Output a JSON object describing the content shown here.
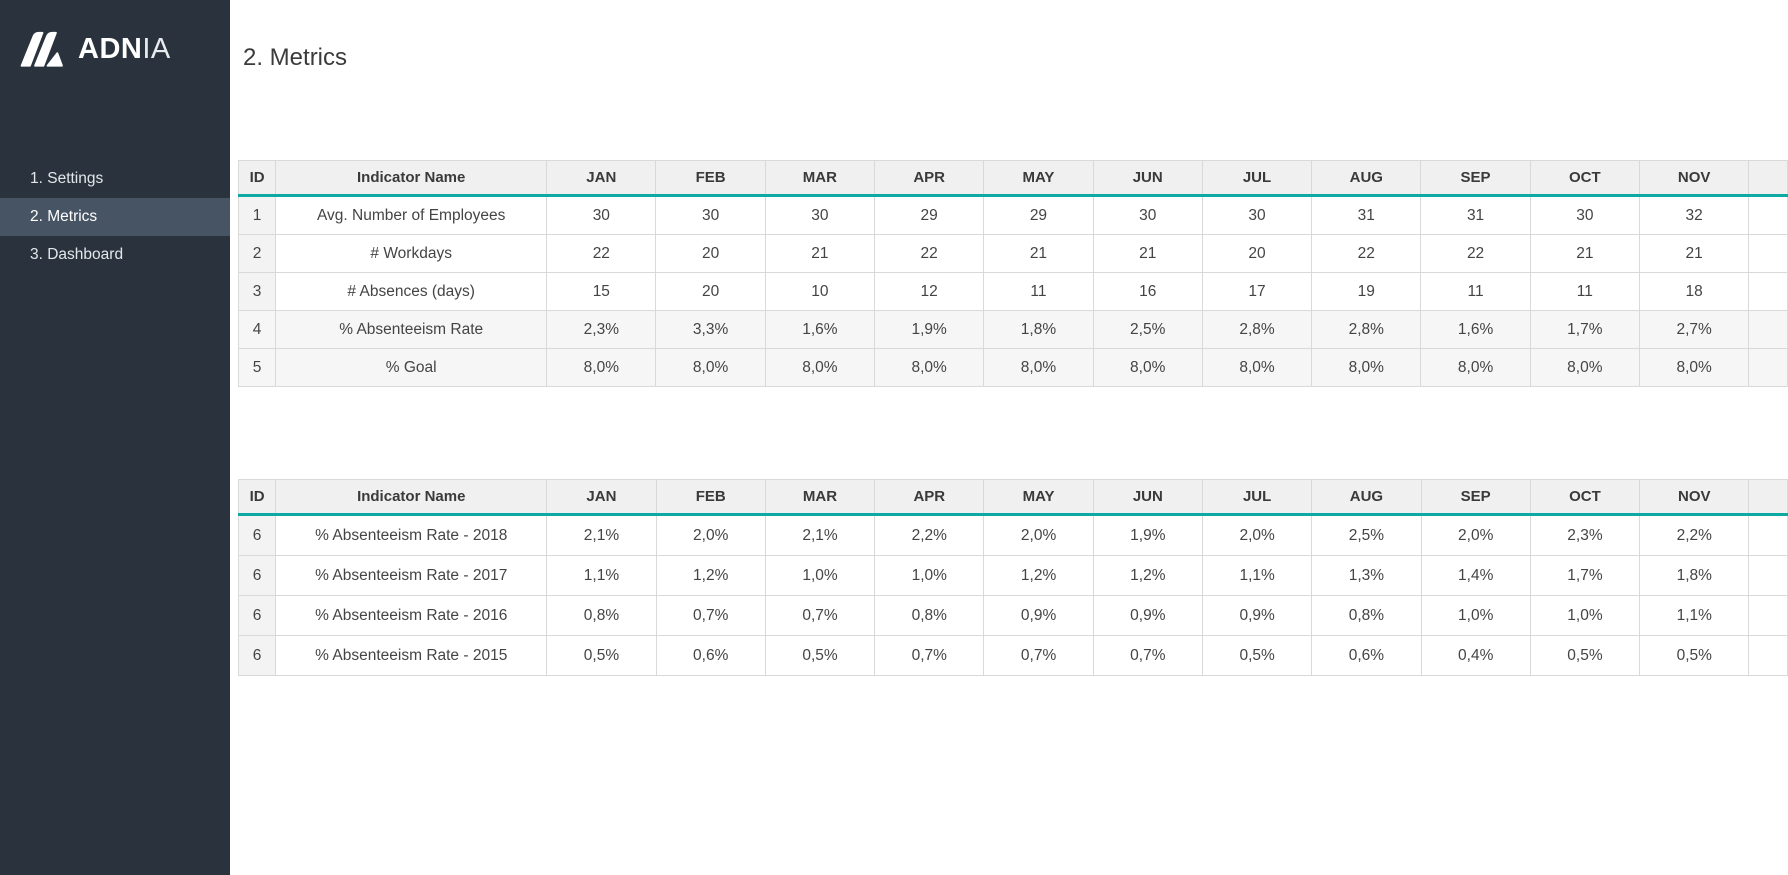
{
  "sidebar": {
    "logo": {
      "brand_bold": "ADN",
      "brand_light": "IA",
      "icon": "adnia-logo-icon"
    },
    "items": [
      {
        "label": "1. Settings",
        "active": false
      },
      {
        "label": "2. Metrics",
        "active": true
      },
      {
        "label": "3. Dashboard",
        "active": false
      }
    ]
  },
  "page": {
    "title": "2. Metrics"
  },
  "colors": {
    "sidebar_bg": "#2A333D",
    "sidebar_active_bg": "#475463",
    "accent_teal": "#0FA9A4",
    "table_header_bg": "#F0F0F0",
    "table_border": "#D9D9D9",
    "shaded_row_bg": "#F6F6F6",
    "id_column_bg": "#F3F3F3",
    "text_dark": "#3B3B3B"
  },
  "tables": [
    {
      "columns": [
        "ID",
        "Indicator Name",
        "JAN",
        "FEB",
        "MAR",
        "APR",
        "MAY",
        "JUN",
        "JUL",
        "AUG",
        "SEP",
        "OCT",
        "NOV"
      ],
      "rows": [
        {
          "id": "1",
          "name": "Avg. Number of Employees",
          "shaded": false,
          "values": [
            "30",
            "30",
            "30",
            "29",
            "29",
            "30",
            "30",
            "31",
            "31",
            "30",
            "32"
          ]
        },
        {
          "id": "2",
          "name": "# Workdays",
          "shaded": false,
          "values": [
            "22",
            "20",
            "21",
            "22",
            "21",
            "21",
            "20",
            "22",
            "22",
            "21",
            "21"
          ]
        },
        {
          "id": "3",
          "name": "# Absences (days)",
          "shaded": false,
          "values": [
            "15",
            "20",
            "10",
            "12",
            "11",
            "16",
            "17",
            "19",
            "11",
            "11",
            "18"
          ]
        },
        {
          "id": "4",
          "name": "% Absenteeism Rate",
          "shaded": true,
          "values": [
            "2,3%",
            "3,3%",
            "1,6%",
            "1,9%",
            "1,8%",
            "2,5%",
            "2,8%",
            "2,8%",
            "1,6%",
            "1,7%",
            "2,7%"
          ]
        },
        {
          "id": "5",
          "name": "% Goal",
          "shaded": true,
          "values": [
            "8,0%",
            "8,0%",
            "8,0%",
            "8,0%",
            "8,0%",
            "8,0%",
            "8,0%",
            "8,0%",
            "8,0%",
            "8,0%",
            "8,0%"
          ]
        }
      ]
    },
    {
      "columns": [
        "ID",
        "Indicator Name",
        "JAN",
        "FEB",
        "MAR",
        "APR",
        "MAY",
        "JUN",
        "JUL",
        "AUG",
        "SEP",
        "OCT",
        "NOV"
      ],
      "rows": [
        {
          "id": "6",
          "name": "% Absenteeism Rate - 2018",
          "shaded": false,
          "values": [
            "2,1%",
            "2,0%",
            "2,1%",
            "2,2%",
            "2,0%",
            "1,9%",
            "2,0%",
            "2,5%",
            "2,0%",
            "2,3%",
            "2,2%"
          ]
        },
        {
          "id": "6",
          "name": "% Absenteeism Rate - 2017",
          "shaded": false,
          "values": [
            "1,1%",
            "1,2%",
            "1,0%",
            "1,0%",
            "1,2%",
            "1,2%",
            "1,1%",
            "1,3%",
            "1,4%",
            "1,7%",
            "1,8%"
          ]
        },
        {
          "id": "6",
          "name": "% Absenteeism Rate - 2016",
          "shaded": false,
          "values": [
            "0,8%",
            "0,7%",
            "0,7%",
            "0,8%",
            "0,9%",
            "0,9%",
            "0,9%",
            "0,8%",
            "1,0%",
            "1,0%",
            "1,1%"
          ]
        },
        {
          "id": "6",
          "name": "% Absenteeism Rate - 2015",
          "shaded": false,
          "values": [
            "0,5%",
            "0,6%",
            "0,5%",
            "0,7%",
            "0,7%",
            "0,7%",
            "0,5%",
            "0,6%",
            "0,4%",
            "0,5%",
            "0,5%"
          ]
        }
      ]
    }
  ]
}
